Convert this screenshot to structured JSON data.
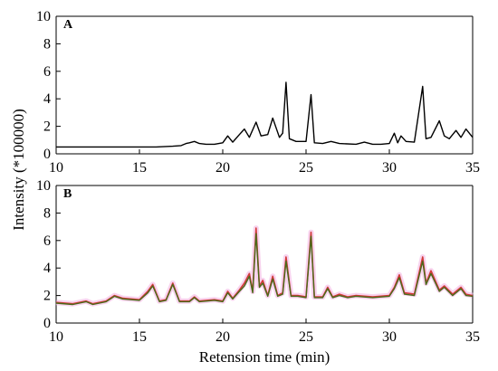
{
  "chart_data": [
    {
      "panel": "A",
      "type": "line",
      "xlabel": "",
      "ylabel": "",
      "xlim": [
        10,
        35
      ],
      "ylim": [
        0,
        10
      ],
      "xticks": [
        10,
        15,
        20,
        25,
        30,
        35
      ],
      "yticks": [
        0,
        2,
        4,
        6,
        8,
        10
      ],
      "series": [
        {
          "color": "#000000",
          "x": [
            10,
            12,
            14,
            16,
            17,
            17.5,
            17.8,
            18.0,
            18.3,
            18.6,
            19.0,
            19.5,
            20.0,
            20.3,
            20.6,
            21.0,
            21.3,
            21.6,
            22.0,
            22.3,
            22.7,
            23.0,
            23.4,
            23.6,
            23.8,
            24.0,
            24.4,
            25.0,
            25.3,
            25.5,
            26.0,
            26.5,
            27.0,
            28.0,
            28.5,
            29.0,
            29.5,
            30.0,
            30.3,
            30.5,
            30.7,
            31.0,
            31.5,
            32.0,
            32.2,
            32.5,
            33.0,
            33.3,
            33.6,
            34.0,
            34.3,
            34.6,
            35.0
          ],
          "y": [
            0.5,
            0.5,
            0.5,
            0.5,
            0.55,
            0.6,
            0.75,
            0.8,
            0.9,
            0.75,
            0.7,
            0.7,
            0.8,
            1.3,
            0.85,
            1.4,
            1.8,
            1.2,
            2.3,
            1.3,
            1.4,
            2.6,
            1.2,
            1.5,
            5.2,
            1.1,
            0.9,
            0.9,
            4.3,
            0.8,
            0.75,
            0.9,
            0.75,
            0.7,
            0.85,
            0.7,
            0.7,
            0.75,
            1.5,
            0.8,
            1.3,
            0.9,
            0.85,
            4.9,
            1.1,
            1.2,
            2.4,
            1.3,
            1.1,
            1.7,
            1.2,
            1.8,
            1.2
          ]
        }
      ]
    },
    {
      "panel": "B",
      "type": "line",
      "xlabel": "Retension time (min)",
      "ylabel": "Intensity (*100000)",
      "xlim": [
        10,
        35
      ],
      "ylim": [
        0,
        10
      ],
      "xticks": [
        10,
        15,
        20,
        25,
        30,
        35
      ],
      "yticks": [
        0,
        2,
        4,
        6,
        8,
        10
      ],
      "series": [
        {
          "color": "#d23a3a",
          "x": [
            10,
            11,
            11.8,
            12.2,
            13.0,
            13.5,
            14.0,
            15.0,
            15.5,
            15.8,
            16.2,
            16.6,
            17.0,
            17.4,
            18.0,
            18.3,
            18.6,
            19.5,
            20.0,
            20.3,
            20.6,
            21.0,
            21.3,
            21.6,
            21.8,
            22.0,
            22.2,
            22.4,
            22.7,
            23.0,
            23.3,
            23.6,
            23.8,
            24.1,
            24.5,
            25.0,
            25.3,
            25.5,
            26.0,
            26.3,
            26.6,
            27.0,
            27.5,
            28.0,
            29.0,
            30.0,
            30.3,
            30.6,
            30.9,
            31.5,
            32.0,
            32.2,
            32.5,
            33.0,
            33.3,
            33.8,
            34.3,
            34.6,
            35.0
          ],
          "y": [
            1.5,
            1.4,
            1.6,
            1.4,
            1.6,
            2.0,
            1.8,
            1.7,
            2.3,
            2.8,
            1.6,
            1.7,
            2.9,
            1.6,
            1.6,
            1.9,
            1.6,
            1.7,
            1.6,
            2.3,
            1.8,
            2.4,
            2.9,
            3.6,
            2.3,
            6.9,
            2.7,
            3.1,
            2.0,
            3.4,
            2.0,
            2.2,
            4.8,
            2.0,
            2.0,
            1.9,
            6.6,
            1.9,
            1.9,
            2.6,
            1.9,
            2.1,
            1.9,
            2.0,
            1.9,
            2.0,
            2.6,
            3.5,
            2.2,
            2.1,
            4.8,
            2.9,
            3.8,
            2.4,
            2.7,
            2.1,
            2.6,
            2.1,
            2.0
          ]
        },
        {
          "color": "#4a6a1a",
          "x": [
            10,
            11,
            11.8,
            12.2,
            13.0,
            13.5,
            14.0,
            15.0,
            15.5,
            15.8,
            16.2,
            16.6,
            17.0,
            17.4,
            18.0,
            18.3,
            18.6,
            19.5,
            20.0,
            20.3,
            20.6,
            21.0,
            21.3,
            21.6,
            21.8,
            22.0,
            22.2,
            22.4,
            22.7,
            23.0,
            23.3,
            23.6,
            23.8,
            24.1,
            24.5,
            25.0,
            25.3,
            25.5,
            26.0,
            26.3,
            26.6,
            27.0,
            27.5,
            28.0,
            29.0,
            30.0,
            30.3,
            30.6,
            30.9,
            31.5,
            32.0,
            32.2,
            32.5,
            33.0,
            33.3,
            33.8,
            34.3,
            34.6,
            35.0
          ],
          "y": [
            1.45,
            1.35,
            1.55,
            1.35,
            1.55,
            1.95,
            1.75,
            1.65,
            2.2,
            2.7,
            1.55,
            1.65,
            2.8,
            1.55,
            1.55,
            1.85,
            1.55,
            1.65,
            1.55,
            2.2,
            1.75,
            2.3,
            2.7,
            3.4,
            2.2,
            6.5,
            2.6,
            2.9,
            1.95,
            3.2,
            1.95,
            2.1,
            4.5,
            1.95,
            1.95,
            1.85,
            6.3,
            1.85,
            1.85,
            2.5,
            1.85,
            2.0,
            1.85,
            1.95,
            1.85,
            1.95,
            2.5,
            3.3,
            2.1,
            2.0,
            4.5,
            2.8,
            3.6,
            2.3,
            2.6,
            2.0,
            2.5,
            2.0,
            1.95
          ]
        }
      ]
    }
  ]
}
